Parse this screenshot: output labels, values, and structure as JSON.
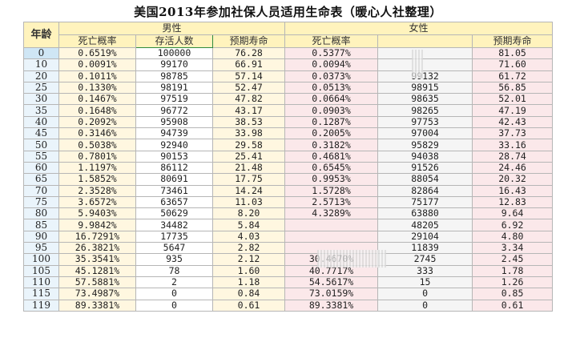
{
  "title": "美国2013年参加社保人员适用生命表（暖心人社整理）",
  "headers": {
    "age": "年龄",
    "male_group": "男性",
    "female_group": "女性",
    "death_rate": "死亡概率",
    "survivors": "存活人数",
    "life_expectancy": "预期寿命"
  },
  "rows": [
    {
      "age": "0",
      "m_rate": "0.6519%",
      "m_surv": "100000",
      "m_life": "76.28",
      "f_rate": "0.5377%",
      "f_surv": "",
      "f_life": "81.05"
    },
    {
      "age": "10",
      "m_rate": "0.0091%",
      "m_surv": "99170",
      "m_life": "66.91",
      "f_rate": "0.0094%",
      "f_surv": "",
      "f_life": "71.60"
    },
    {
      "age": "20",
      "m_rate": "0.1011%",
      "m_surv": "98785",
      "m_life": "57.14",
      "f_rate": "0.0373%",
      "f_surv": "99132",
      "f_life": "61.72"
    },
    {
      "age": "25",
      "m_rate": "0.1330%",
      "m_surv": "98191",
      "m_life": "52.47",
      "f_rate": "0.0513%",
      "f_surv": "98915",
      "f_life": "56.85"
    },
    {
      "age": "30",
      "m_rate": "0.1467%",
      "m_surv": "97519",
      "m_life": "47.82",
      "f_rate": "0.0664%",
      "f_surv": "98635",
      "f_life": "52.01"
    },
    {
      "age": "35",
      "m_rate": "0.1648%",
      "m_surv": "96772",
      "m_life": "43.17",
      "f_rate": "0.0903%",
      "f_surv": "98265",
      "f_life": "47.19"
    },
    {
      "age": "40",
      "m_rate": "0.2092%",
      "m_surv": "95908",
      "m_life": "38.53",
      "f_rate": "0.1287%",
      "f_surv": "97753",
      "f_life": "42.43"
    },
    {
      "age": "45",
      "m_rate": "0.3146%",
      "m_surv": "94739",
      "m_life": "33.98",
      "f_rate": "0.2005%",
      "f_surv": "97004",
      "f_life": "37.73"
    },
    {
      "age": "50",
      "m_rate": "0.5038%",
      "m_surv": "92940",
      "m_life": "29.58",
      "f_rate": "0.3182%",
      "f_surv": "95829",
      "f_life": "33.16"
    },
    {
      "age": "55",
      "m_rate": "0.7801%",
      "m_surv": "90153",
      "m_life": "25.41",
      "f_rate": "0.4681%",
      "f_surv": "94038",
      "f_life": "28.74"
    },
    {
      "age": "60",
      "m_rate": "1.1197%",
      "m_surv": "86112",
      "m_life": "21.48",
      "f_rate": "0.6545%",
      "f_surv": "91526",
      "f_life": "24.46"
    },
    {
      "age": "65",
      "m_rate": "1.5852%",
      "m_surv": "80691",
      "m_life": "17.75",
      "f_rate": "0.9953%",
      "f_surv": "88054",
      "f_life": "20.32"
    },
    {
      "age": "70",
      "m_rate": "2.3528%",
      "m_surv": "73461",
      "m_life": "14.24",
      "f_rate": "1.5728%",
      "f_surv": "82864",
      "f_life": "16.43"
    },
    {
      "age": "75",
      "m_rate": "3.6572%",
      "m_surv": "63657",
      "m_life": "11.03",
      "f_rate": "2.5713%",
      "f_surv": "75177",
      "f_life": "12.83"
    },
    {
      "age": "80",
      "m_rate": "5.9403%",
      "m_surv": "50629",
      "m_life": "8.20",
      "f_rate": "4.3289%",
      "f_surv": "63880",
      "f_life": "9.64"
    },
    {
      "age": "85",
      "m_rate": "9.9842%",
      "m_surv": "34482",
      "m_life": "5.84",
      "f_rate": "",
      "f_surv": "48205",
      "f_life": "6.92"
    },
    {
      "age": "90",
      "m_rate": "16.7291%",
      "m_surv": "17735",
      "m_life": "4.03",
      "f_rate": "",
      "f_surv": "29104",
      "f_life": "4.80"
    },
    {
      "age": "95",
      "m_rate": "26.3821%",
      "m_surv": "5647",
      "m_life": "2.82",
      "f_rate": "",
      "f_surv": "11839",
      "f_life": "3.34"
    },
    {
      "age": "100",
      "m_rate": "35.3541%",
      "m_surv": "935",
      "m_life": "2.12",
      "f_rate": "30.4670%",
      "f_surv": "2745",
      "f_life": "2.45"
    },
    {
      "age": "105",
      "m_rate": "45.1281%",
      "m_surv": "78",
      "m_life": "1.60",
      "f_rate": "40.7717%",
      "f_surv": "333",
      "f_life": "1.78"
    },
    {
      "age": "110",
      "m_rate": "57.5881%",
      "m_surv": "2",
      "m_life": "1.18",
      "f_rate": "54.5617%",
      "f_surv": "15",
      "f_life": "1.26"
    },
    {
      "age": "115",
      "m_rate": "73.4987%",
      "m_surv": "0",
      "m_life": "0.84",
      "f_rate": "73.0159%",
      "f_surv": "0",
      "f_life": "0.85"
    },
    {
      "age": "119",
      "m_rate": "89.3381%",
      "m_surv": "0",
      "m_life": "0.61",
      "f_rate": "89.3381%",
      "f_surv": "0",
      "f_life": "0.61"
    }
  ]
}
